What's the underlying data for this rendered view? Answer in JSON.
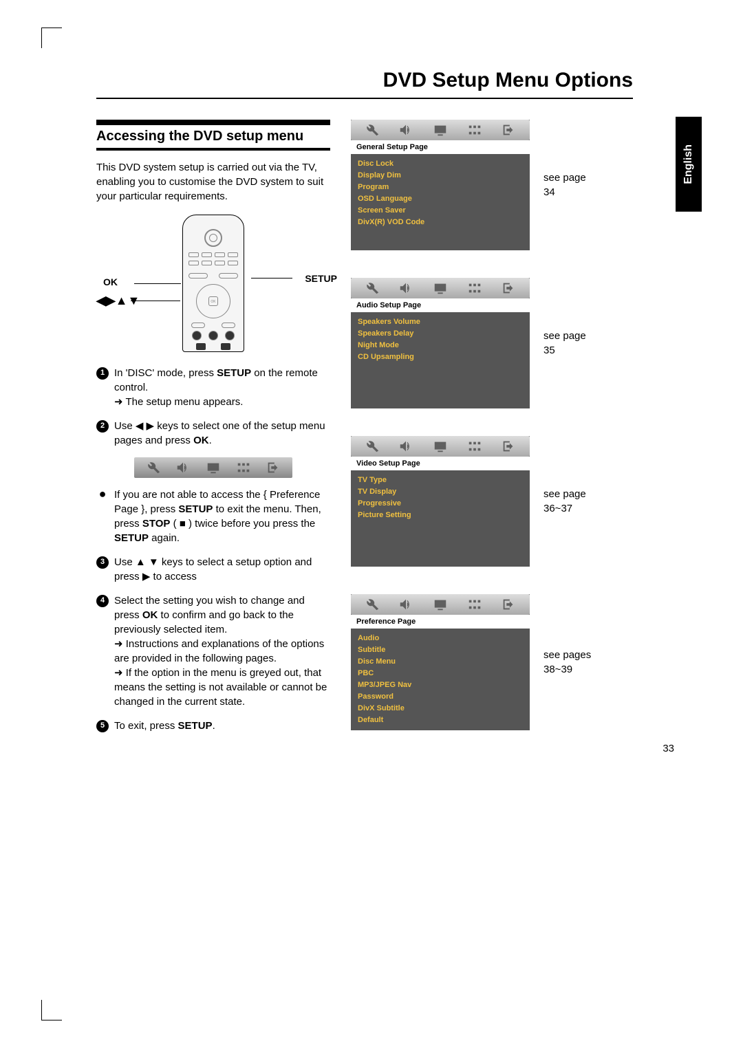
{
  "page_number": "33",
  "language_tab": "English",
  "main_title": "DVD Setup Menu Options",
  "section_title": "Accessing the DVD setup menu",
  "intro_text": "This DVD system setup is carried out via the TV, enabling you to customise the DVD system to suit your particular requirements.",
  "remote_labels": {
    "ok": "OK",
    "setup": "SETUP",
    "arrows": "◀▶▲▼"
  },
  "steps": {
    "s1_a": "In 'DISC' mode, press ",
    "s1_b": "SETUP",
    "s1_c": " on the remote control.",
    "s1_sub": "➜ The setup menu appears.",
    "s2_a": "Use ◀ ▶ keys to select one of the setup menu pages and press ",
    "s2_b": "OK",
    "s2_c": ".",
    "bullet_a": "If you are not able to access the { Preference Page }, press ",
    "bullet_b": "SETUP",
    "bullet_c": " to exit the menu.  Then, press ",
    "bullet_d": "STOP",
    "bullet_e": " ( ■ ) twice before you press the ",
    "bullet_f": "SETUP",
    "bullet_g": " again.",
    "s3": "Use ▲ ▼ keys to select a setup option and press ▶ to access",
    "s4_a": "Select the setting you wish to change and press ",
    "s4_b": "OK",
    "s4_c": " to confirm and go back to the previously selected item.",
    "s4_sub1": "➜ Instructions and explanations of the options are provided in the following pages.",
    "s4_sub2": "➜ If the option in the menu is greyed out, that means the setting is not available or cannot be changed in the current state.",
    "s5_a": "To exit, press ",
    "s5_b": "SETUP",
    "s5_c": "."
  },
  "panels": [
    {
      "header": "General Setup Page",
      "items": [
        "Disc Lock",
        "Display Dim",
        "Program",
        "OSD Language",
        "Screen Saver",
        "DivX(R) VOD Code"
      ],
      "ref": "see page 34"
    },
    {
      "header": "Audio Setup Page",
      "items": [
        "Speakers Volume",
        "Speakers Delay",
        "Night Mode",
        "CD Upsampling"
      ],
      "ref": "see page 35"
    },
    {
      "header": "Video Setup Page",
      "items": [
        "TV Type",
        "TV Display",
        "Progressive",
        "Picture Setting"
      ],
      "ref": "see page 36~37"
    },
    {
      "header": "Preference Page",
      "items": [
        "Audio",
        "Subtitle",
        "Disc Menu",
        "PBC",
        "MP3/JPEG Nav",
        "Password",
        "DivX Subtitle",
        "Default"
      ],
      "ref": "see pages 38~39"
    }
  ],
  "colors": {
    "menu_item": "#f0c040",
    "panel_bg": "#555555",
    "icon_fill": "#666666"
  }
}
